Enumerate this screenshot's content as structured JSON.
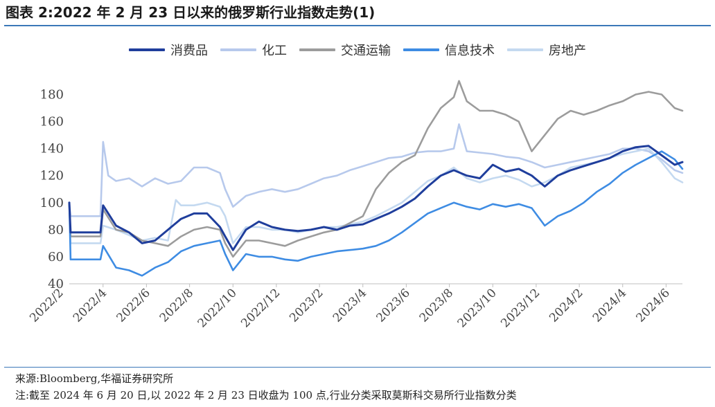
{
  "title": "图表 2:2022 年 2 月 23 日以来的俄罗斯行业指数走势(1)",
  "footer": {
    "source": "来源:Bloomberg,华福证券研究所",
    "note": "注:截至 2024 年 6 月 20 日,以 2022 年 2 月 23 日收盘为 100 点,行业分类采取莫斯科交易所行业指数分类"
  },
  "chart_data": {
    "type": "line",
    "title": "图表 2:2022 年 2 月 23 日以来的俄罗斯行业指数走势(1)",
    "xlabel": "",
    "ylabel": "",
    "ylim": [
      40,
      190
    ],
    "yticks": [
      40,
      60,
      80,
      100,
      120,
      140,
      160,
      180
    ],
    "xlim": [
      2022.12,
      2024.48
    ],
    "x_tick_labels": [
      "2022/2",
      "2022/4",
      "2022/6",
      "2022/8",
      "2022/10",
      "2022/12",
      "2023/2",
      "2023/4",
      "2023/6",
      "2023/8",
      "2023/10",
      "2023/12",
      "2024/2",
      "2024/4",
      "2024/6"
    ],
    "x_tick_values": [
      2022.083,
      2022.25,
      2022.417,
      2022.583,
      2022.75,
      2022.917,
      2023.083,
      2023.25,
      2023.417,
      2023.583,
      2023.75,
      2023.917,
      2024.083,
      2024.25,
      2024.417
    ],
    "grid": false,
    "legend_position": "top-center",
    "series": [
      {
        "name": "消费品",
        "color": "#1f3e9c",
        "x": [
          2022.12,
          2022.125,
          2022.2,
          2022.24,
          2022.25,
          2022.3,
          2022.35,
          2022.4,
          2022.45,
          2022.5,
          2022.55,
          2022.6,
          2022.65,
          2022.7,
          2022.72,
          2022.75,
          2022.8,
          2022.85,
          2022.9,
          2022.95,
          2023.0,
          2023.05,
          2023.1,
          2023.15,
          2023.2,
          2023.25,
          2023.3,
          2023.35,
          2023.4,
          2023.45,
          2023.5,
          2023.55,
          2023.6,
          2023.65,
          2023.7,
          2023.75,
          2023.8,
          2023.85,
          2023.9,
          2023.95,
          2024.0,
          2024.05,
          2024.1,
          2024.15,
          2024.2,
          2024.25,
          2024.3,
          2024.35,
          2024.4,
          2024.45,
          2024.48
        ],
        "values": [
          100,
          78,
          78,
          78,
          98,
          83,
          78,
          70,
          72,
          80,
          88,
          92,
          92,
          82,
          75,
          65,
          80,
          86,
          82,
          80,
          79,
          80,
          82,
          80,
          83,
          84,
          88,
          92,
          97,
          103,
          112,
          120,
          124,
          120,
          118,
          128,
          123,
          125,
          120,
          112,
          120,
          124,
          127,
          130,
          133,
          138,
          141,
          142,
          135,
          128,
          130
        ]
      },
      {
        "name": "化工",
        "color": "#b7c9ec",
        "x": [
          2022.12,
          2022.125,
          2022.2,
          2022.24,
          2022.25,
          2022.27,
          2022.3,
          2022.35,
          2022.4,
          2022.45,
          2022.5,
          2022.55,
          2022.6,
          2022.65,
          2022.7,
          2022.72,
          2022.75,
          2022.8,
          2022.85,
          2022.9,
          2022.95,
          2023.0,
          2023.05,
          2023.1,
          2023.15,
          2023.2,
          2023.25,
          2023.3,
          2023.35,
          2023.4,
          2023.45,
          2023.5,
          2023.55,
          2023.6,
          2023.62,
          2023.65,
          2023.7,
          2023.75,
          2023.8,
          2023.85,
          2023.9,
          2023.95,
          2024.0,
          2024.05,
          2024.1,
          2024.15,
          2024.2,
          2024.25,
          2024.3,
          2024.35,
          2024.4,
          2024.45,
          2024.48
        ],
        "values": [
          100,
          90,
          90,
          90,
          145,
          120,
          116,
          118,
          112,
          118,
          114,
          116,
          126,
          126,
          122,
          110,
          97,
          105,
          108,
          110,
          108,
          110,
          114,
          118,
          120,
          124,
          127,
          130,
          133,
          134,
          137,
          138,
          138,
          140,
          158,
          138,
          137,
          136,
          134,
          133,
          130,
          126,
          128,
          130,
          132,
          134,
          136,
          140,
          140,
          138,
          132,
          124,
          122
        ]
      },
      {
        "name": "交通运输",
        "color": "#9c9c9c",
        "x": [
          2022.12,
          2022.125,
          2022.2,
          2022.24,
          2022.25,
          2022.3,
          2022.35,
          2022.4,
          2022.45,
          2022.5,
          2022.55,
          2022.6,
          2022.65,
          2022.7,
          2022.72,
          2022.75,
          2022.8,
          2022.85,
          2022.9,
          2022.95,
          2023.0,
          2023.05,
          2023.1,
          2023.15,
          2023.2,
          2023.25,
          2023.3,
          2023.35,
          2023.4,
          2023.45,
          2023.5,
          2023.55,
          2023.6,
          2023.62,
          2023.65,
          2023.7,
          2023.75,
          2023.8,
          2023.85,
          2023.9,
          2023.95,
          2024.0,
          2024.05,
          2024.1,
          2024.15,
          2024.2,
          2024.25,
          2024.3,
          2024.35,
          2024.4,
          2024.45,
          2024.48
        ],
        "values": [
          100,
          75,
          75,
          75,
          95,
          80,
          78,
          72,
          70,
          68,
          75,
          80,
          82,
          80,
          70,
          60,
          72,
          72,
          70,
          68,
          72,
          75,
          78,
          80,
          85,
          90,
          110,
          122,
          130,
          135,
          155,
          170,
          178,
          190,
          175,
          168,
          168,
          165,
          160,
          138,
          150,
          162,
          168,
          165,
          168,
          172,
          175,
          180,
          182,
          180,
          170,
          168
        ]
      },
      {
        "name": "信息技术",
        "color": "#3e8ce3",
        "x": [
          2022.12,
          2022.125,
          2022.2,
          2022.24,
          2022.25,
          2022.3,
          2022.35,
          2022.4,
          2022.45,
          2022.5,
          2022.55,
          2022.6,
          2022.65,
          2022.7,
          2022.72,
          2022.75,
          2022.8,
          2022.85,
          2022.9,
          2022.95,
          2023.0,
          2023.05,
          2023.1,
          2023.15,
          2023.2,
          2023.25,
          2023.3,
          2023.35,
          2023.4,
          2023.45,
          2023.5,
          2023.55,
          2023.6,
          2023.65,
          2023.7,
          2023.75,
          2023.8,
          2023.85,
          2023.9,
          2023.95,
          2024.0,
          2024.05,
          2024.1,
          2024.15,
          2024.2,
          2024.25,
          2024.3,
          2024.35,
          2024.4,
          2024.45,
          2024.48
        ],
        "values": [
          100,
          58,
          58,
          58,
          68,
          52,
          50,
          46,
          52,
          56,
          64,
          68,
          70,
          72,
          62,
          50,
          62,
          60,
          60,
          58,
          57,
          60,
          62,
          64,
          65,
          66,
          68,
          72,
          78,
          85,
          92,
          96,
          100,
          97,
          95,
          99,
          97,
          99,
          96,
          83,
          90,
          94,
          100,
          108,
          114,
          122,
          128,
          133,
          138,
          132,
          125
        ]
      },
      {
        "name": "房地产",
        "color": "#c4d9f0",
        "x": [
          2022.12,
          2022.125,
          2022.2,
          2022.24,
          2022.25,
          2022.3,
          2022.35,
          2022.4,
          2022.45,
          2022.5,
          2022.53,
          2022.55,
          2022.6,
          2022.65,
          2022.7,
          2022.72,
          2022.75,
          2022.8,
          2022.85,
          2022.9,
          2022.95,
          2023.0,
          2023.05,
          2023.1,
          2023.15,
          2023.2,
          2023.25,
          2023.3,
          2023.35,
          2023.4,
          2023.45,
          2023.5,
          2023.55,
          2023.6,
          2023.65,
          2023.7,
          2023.75,
          2023.8,
          2023.85,
          2023.9,
          2023.95,
          2024.0,
          2024.05,
          2024.1,
          2024.15,
          2024.2,
          2024.25,
          2024.3,
          2024.35,
          2024.4,
          2024.45,
          2024.48
        ],
        "values": [
          100,
          70,
          70,
          70,
          83,
          80,
          76,
          72,
          74,
          72,
          102,
          98,
          98,
          100,
          97,
          90,
          70,
          82,
          82,
          80,
          80,
          78,
          80,
          82,
          82,
          84,
          86,
          90,
          95,
          100,
          108,
          116,
          120,
          126,
          118,
          115,
          118,
          120,
          117,
          112,
          115,
          120,
          126,
          128,
          130,
          133,
          136,
          138,
          140,
          130,
          118,
          115
        ]
      }
    ]
  }
}
